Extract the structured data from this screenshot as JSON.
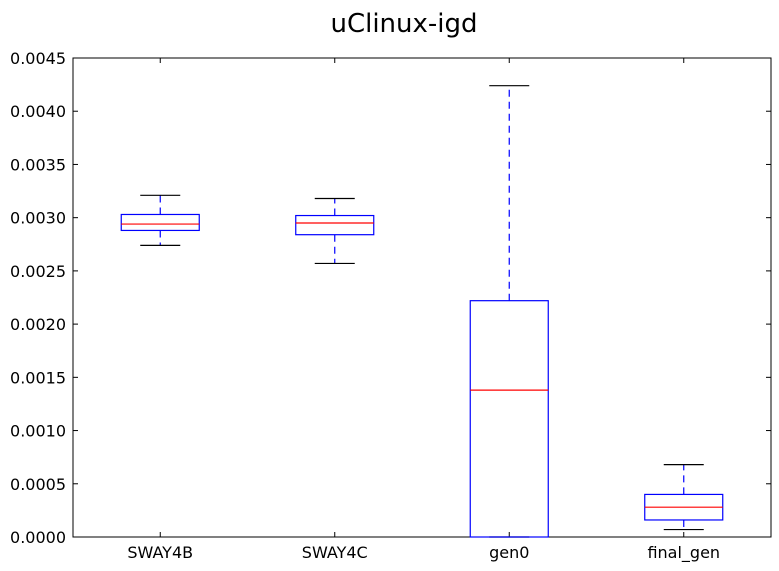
{
  "chart_data": {
    "type": "boxplot",
    "title": "uClinux-igd",
    "xlabel": "",
    "ylabel": "",
    "ylim": [
      0,
      0.0045
    ],
    "yticks": [
      0.0,
      0.0005,
      0.001,
      0.0015,
      0.002,
      0.0025,
      0.003,
      0.0035,
      0.004,
      0.0045
    ],
    "ytick_labels": [
      "0.0000",
      "0.0005",
      "0.0010",
      "0.0015",
      "0.0020",
      "0.0025",
      "0.0030",
      "0.0035",
      "0.0040",
      "0.0045"
    ],
    "categories": [
      "SWAY4B",
      "SWAY4C",
      "gen0",
      "final_gen"
    ],
    "series": [
      {
        "name": "SWAY4B",
        "whisker_low": 0.00274,
        "q1": 0.00288,
        "median": 0.00294,
        "q3": 0.00303,
        "whisker_high": 0.00321
      },
      {
        "name": "SWAY4C",
        "whisker_low": 0.00257,
        "q1": 0.00284,
        "median": 0.00295,
        "q3": 0.00302,
        "whisker_high": 0.00318
      },
      {
        "name": "gen0",
        "whisker_low": 0.0,
        "q1": 0.0,
        "median": 0.00138,
        "q3": 0.00222,
        "whisker_high": 0.00424
      },
      {
        "name": "final_gen",
        "whisker_low": 7e-05,
        "q1": 0.00016,
        "median": 0.00028,
        "q3": 0.0004,
        "whisker_high": 0.00068
      }
    ],
    "colors": {
      "box": "#0000ff",
      "median": "#ff0000",
      "cap": "#000000"
    }
  }
}
